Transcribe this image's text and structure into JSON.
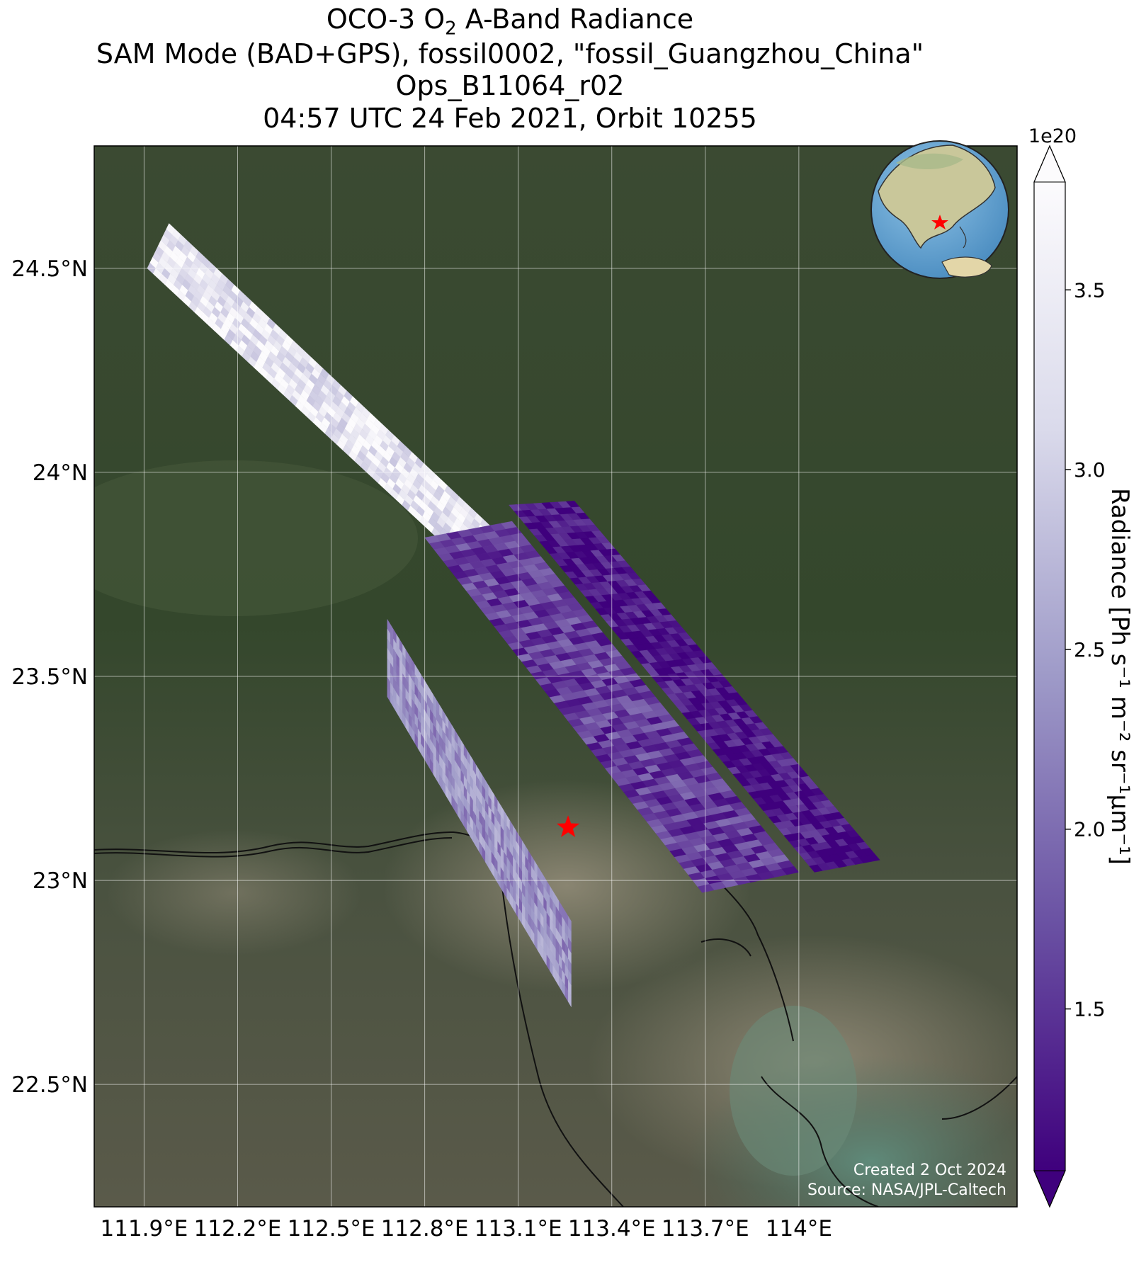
{
  "title": {
    "line1_pre": "OCO-3 O",
    "line1_sub": "2",
    "line1_post": " A-Band Radiance",
    "line2": "SAM Mode (BAD+GPS), fossil0002, \"fossil_Guangzhou_China\"",
    "line3": "Ops_B11064_r02",
    "line4": "04:57 UTC 24 Feb 2021, Orbit 10255"
  },
  "map": {
    "lon_range": [
      111.74,
      114.7
    ],
    "lat_range": [
      22.2,
      24.8
    ],
    "lon_ticks": [
      111.9,
      112.2,
      112.5,
      112.8,
      113.1,
      113.4,
      113.7,
      114.0
    ],
    "lon_tick_labels": [
      "111.9°E",
      "112.2°E",
      "112.5°E",
      "112.8°E",
      "113.1°E",
      "113.4°E",
      "113.7°E",
      "114°E"
    ],
    "lat_ticks": [
      22.5,
      23.0,
      23.5,
      24.0,
      24.5
    ],
    "lat_tick_labels": [
      "22.5°N",
      "23°N",
      "23.5°N",
      "24°N",
      "24.5°N"
    ],
    "grid": true,
    "basemap": "satellite imagery (forest, cities, Pearl River Delta)",
    "target_marker": {
      "icon": "star-icon",
      "color": "#ff0000",
      "lon": 113.26,
      "lat": 23.13
    },
    "inset_globe": {
      "placement": "top-right",
      "icon": "globe-icon",
      "marker_color": "#ff0000"
    }
  },
  "swaths": [
    {
      "name": "upper-left",
      "corners": [
        [
          111.91,
          24.5
        ],
        [
          111.98,
          24.61
        ],
        [
          113.12,
          23.79
        ],
        [
          113.05,
          23.69
        ]
      ],
      "mean_radiance": 3.5
    },
    {
      "name": "center",
      "corners": [
        [
          112.8,
          23.84
        ],
        [
          113.08,
          23.88
        ],
        [
          114.0,
          23.02
        ],
        [
          113.69,
          22.97
        ]
      ],
      "mean_radiance": 1.6
    },
    {
      "name": "right",
      "corners": [
        [
          113.07,
          23.92
        ],
        [
          113.28,
          23.93
        ],
        [
          114.26,
          23.05
        ],
        [
          114.05,
          23.02
        ]
      ],
      "mean_radiance": 1.2
    },
    {
      "name": "lower-left",
      "corners": [
        [
          112.68,
          23.64
        ],
        [
          112.68,
          23.45
        ],
        [
          113.27,
          22.69
        ],
        [
          113.27,
          22.9
        ]
      ],
      "mean_radiance": 2.4
    }
  ],
  "colorbar": {
    "label": "Radiance [Ph s⁻¹ m⁻² sr⁻¹μm⁻¹]",
    "multiplier": "1e20",
    "ticks": [
      1.5,
      2.0,
      2.5,
      3.0,
      3.5
    ],
    "tick_labels": [
      "1.5",
      "2.0",
      "2.5",
      "3.0",
      "3.5"
    ],
    "range": [
      1.05,
      3.8
    ],
    "extend": "both",
    "colormap": "Purples",
    "color_low": "#3f007d",
    "color_mid": "#9e9ac8",
    "color_high": "#fcfbfd"
  },
  "credit": {
    "line1": "Created 2 Oct 2024",
    "line2": "Source: NASA/JPL-Caltech"
  }
}
